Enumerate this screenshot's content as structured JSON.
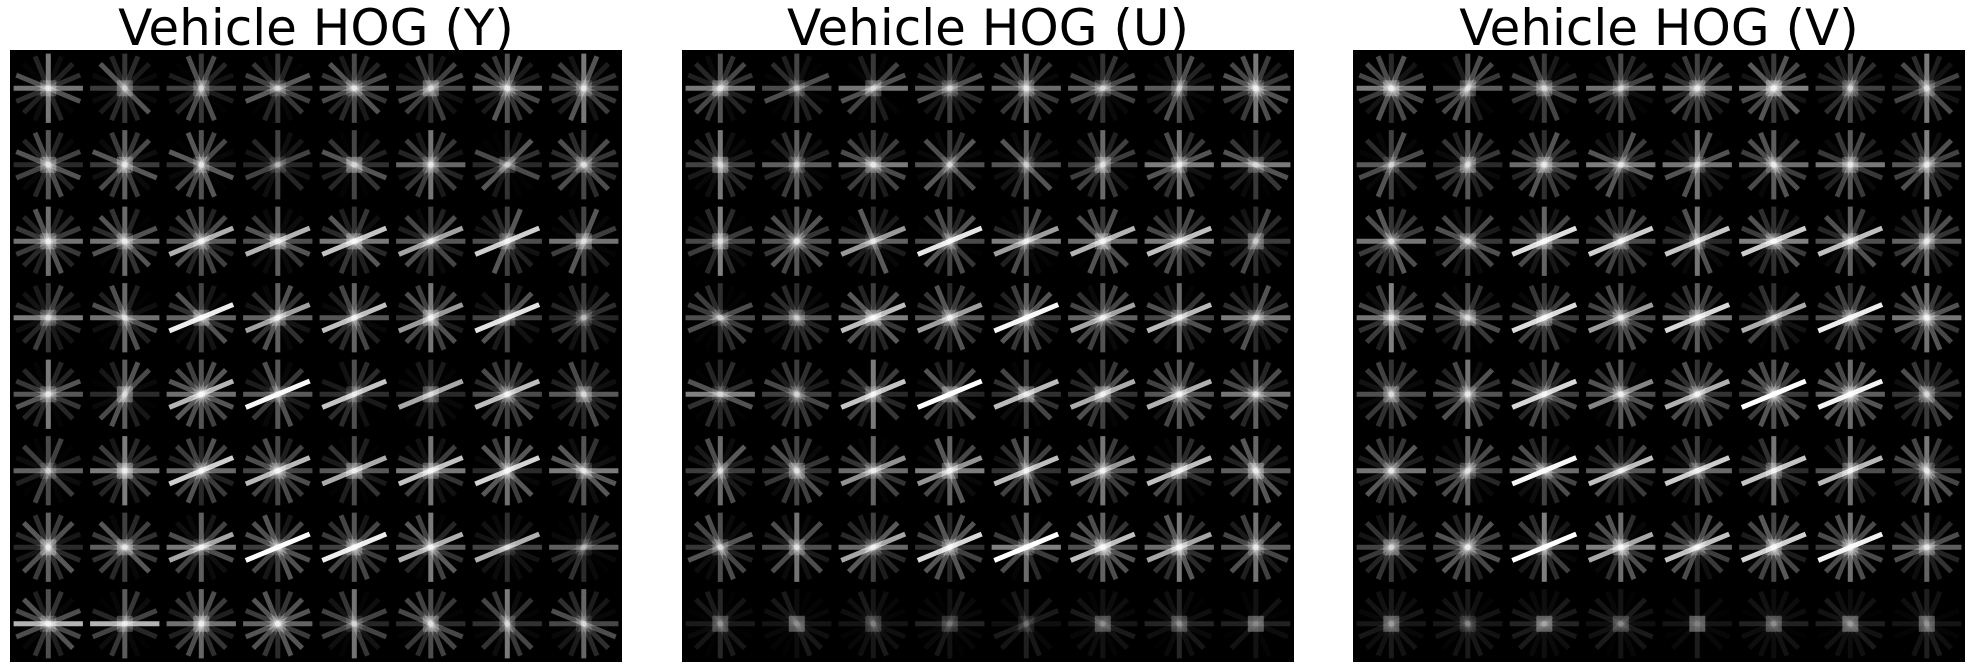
{
  "figure": {
    "panels": [
      {
        "title": "Vehicle HOG (Y)",
        "channel": "Y"
      },
      {
        "title": "Vehicle HOG (U)",
        "channel": "U"
      },
      {
        "title": "Vehicle HOG (V)",
        "channel": "V"
      }
    ],
    "grid": {
      "cols": 8,
      "rows": 8
    },
    "colors": {
      "background": "#000000",
      "stroke": "#ffffff"
    }
  }
}
